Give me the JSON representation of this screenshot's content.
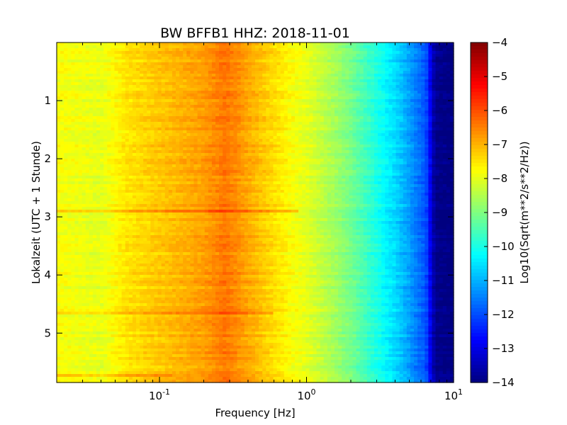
{
  "chart_data": {
    "type": "heatmap",
    "title": "BW BFFB1 HHZ: 2018-11-01",
    "xlabel": "Frequency [Hz]",
    "ylabel": "Lokalzeit (UTC + 1 Stunde)",
    "x_scale": "log",
    "xlim": [
      0.02,
      10
    ],
    "ylim": [
      5.85,
      0
    ],
    "x_ticks": [
      {
        "value": 0.1,
        "base": "10",
        "exp": "-1"
      },
      {
        "value": 1,
        "base": "10",
        "exp": "0"
      },
      {
        "value": 10,
        "base": "10",
        "exp": "1"
      }
    ],
    "y_ticks": [
      {
        "value": 1,
        "label": "1"
      },
      {
        "value": 2,
        "label": "2"
      },
      {
        "value": 3,
        "label": "3"
      },
      {
        "value": 4,
        "label": "4"
      },
      {
        "value": 5,
        "label": "5"
      }
    ],
    "colorbar": {
      "label": "Log10(Sqrt(m**2/s**2/Hz))",
      "range": [
        -14,
        -4
      ],
      "colormap": "jet",
      "ticks": [
        {
          "value": -4,
          "label": "−4"
        },
        {
          "value": -5,
          "label": "−5"
        },
        {
          "value": -6,
          "label": "−6"
        },
        {
          "value": -7,
          "label": "−7"
        },
        {
          "value": -8,
          "label": "−8"
        },
        {
          "value": -9,
          "label": "−9"
        },
        {
          "value": -10,
          "label": "−10"
        },
        {
          "value": -11,
          "label": "−11"
        },
        {
          "value": -12,
          "label": "−12"
        },
        {
          "value": -13,
          "label": "−13"
        },
        {
          "value": -14,
          "label": "−14"
        }
      ]
    },
    "spectrum_profile": {
      "frequency_hz": [
        0.02,
        0.04,
        0.06,
        0.12,
        0.2,
        0.28,
        0.35,
        0.5,
        0.8,
        1.0,
        1.5,
        2.0,
        3.0,
        4.0,
        5.0,
        6.5,
        7.5,
        10
      ],
      "log10_amplitude": [
        -7.8,
        -8.0,
        -7.5,
        -7.1,
        -6.8,
        -6.4,
        -6.7,
        -7.2,
        -7.8,
        -8.0,
        -8.6,
        -9.1,
        -10.0,
        -10.6,
        -11.2,
        -12.0,
        -13.9,
        -14.0
      ]
    },
    "anomalies": [
      {
        "time": 2.9,
        "fmax_hz": 0.9,
        "shift": 0.8
      },
      {
        "time": 4.65,
        "fmax_hz": 0.6,
        "shift": 0.5
      },
      {
        "time": 5.72,
        "fmax_hz": 0.12,
        "shift": 0.5
      }
    ]
  }
}
